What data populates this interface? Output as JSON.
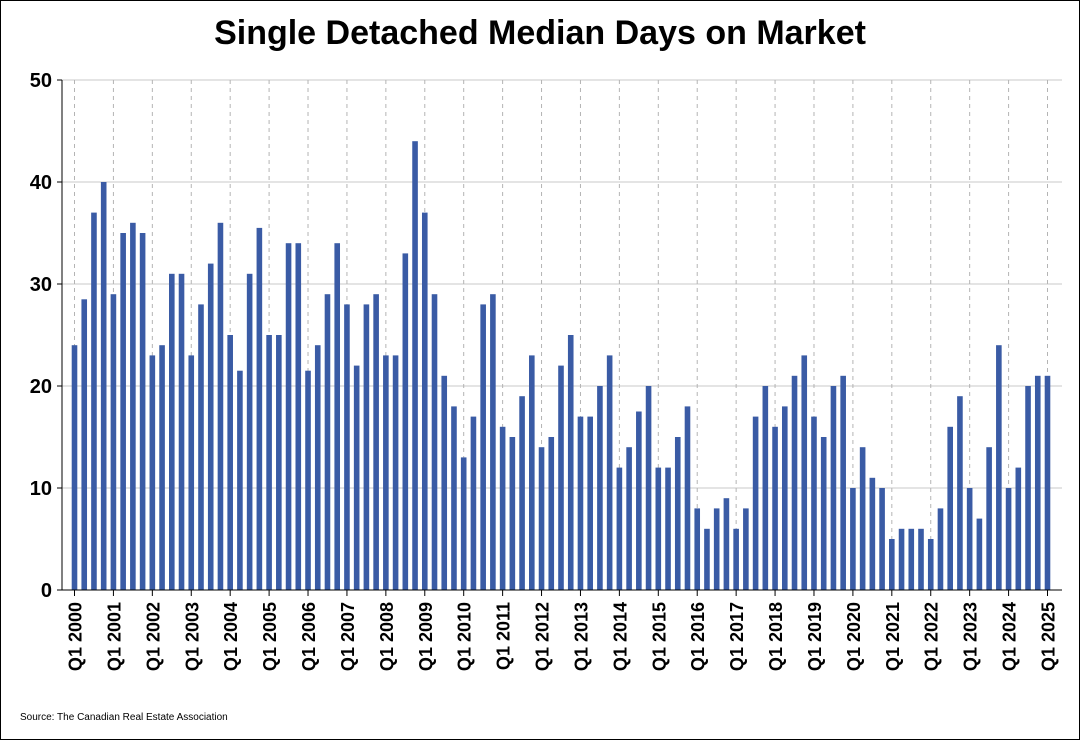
{
  "chart_data": {
    "type": "bar",
    "title": "Single Detached Median Days on Market",
    "xlabel": "",
    "ylabel": "",
    "ylim": [
      0,
      50
    ],
    "yticks": [
      0,
      10,
      20,
      30,
      40,
      50
    ],
    "grid": "horizontal solid, vertical dashed at year starts",
    "bar_color": "#3a5ba5",
    "x_tick_labels": [
      "Q1 2000",
      "Q1 2001",
      "Q1 2002",
      "Q1 2003",
      "Q1 2004",
      "Q1 2005",
      "Q1 2006",
      "Q1 2007",
      "Q1 2008",
      "Q1 2009",
      "Q1 2010",
      "Q1 2011",
      "Q1 2012",
      "Q1 2013",
      "Q1 2014",
      "Q1 2015",
      "Q1 2016",
      "Q1 2017",
      "Q1 2018",
      "Q1 2019",
      "Q1 2020",
      "Q1 2021",
      "Q1 2022",
      "Q1 2023",
      "Q1 2024",
      "Q1 2025"
    ],
    "categories": [
      "Q1 2000",
      "Q2 2000",
      "Q3 2000",
      "Q4 2000",
      "Q1 2001",
      "Q2 2001",
      "Q3 2001",
      "Q4 2001",
      "Q1 2002",
      "Q2 2002",
      "Q3 2002",
      "Q4 2002",
      "Q1 2003",
      "Q2 2003",
      "Q3 2003",
      "Q4 2003",
      "Q1 2004",
      "Q2 2004",
      "Q3 2004",
      "Q4 2004",
      "Q1 2005",
      "Q2 2005",
      "Q3 2005",
      "Q4 2005",
      "Q1 2006",
      "Q2 2006",
      "Q3 2006",
      "Q4 2006",
      "Q1 2007",
      "Q2 2007",
      "Q3 2007",
      "Q4 2007",
      "Q1 2008",
      "Q2 2008",
      "Q3 2008",
      "Q4 2008",
      "Q1 2009",
      "Q2 2009",
      "Q3 2009",
      "Q4 2009",
      "Q1 2010",
      "Q2 2010",
      "Q3 2010",
      "Q4 2010",
      "Q1 2011",
      "Q2 2011",
      "Q3 2011",
      "Q4 2011",
      "Q1 2012",
      "Q2 2012",
      "Q3 2012",
      "Q4 2012",
      "Q1 2013",
      "Q2 2013",
      "Q3 2013",
      "Q4 2013",
      "Q1 2014",
      "Q2 2014",
      "Q3 2014",
      "Q4 2014",
      "Q1 2015",
      "Q2 2015",
      "Q3 2015",
      "Q4 2015",
      "Q1 2016",
      "Q2 2016",
      "Q3 2016",
      "Q4 2016",
      "Q1 2017",
      "Q2 2017",
      "Q3 2017",
      "Q4 2017",
      "Q1 2018",
      "Q2 2018",
      "Q3 2018",
      "Q4 2018",
      "Q1 2019",
      "Q2 2019",
      "Q3 2019",
      "Q4 2019",
      "Q1 2020",
      "Q2 2020",
      "Q3 2020",
      "Q4 2020",
      "Q1 2021",
      "Q2 2021",
      "Q3 2021",
      "Q4 2021",
      "Q1 2022",
      "Q2 2022",
      "Q3 2022",
      "Q4 2022",
      "Q1 2023",
      "Q2 2023",
      "Q3 2023",
      "Q4 2023",
      "Q1 2024",
      "Q2 2024",
      "Q3 2024",
      "Q4 2024",
      "Q1 2025"
    ],
    "values": [
      24,
      28.5,
      37,
      40,
      29,
      35,
      36,
      35,
      23,
      24,
      31,
      31,
      23,
      28,
      32,
      36,
      25,
      21.5,
      31,
      35.5,
      25,
      25,
      34,
      34,
      21.5,
      24,
      29,
      34,
      28,
      22,
      28,
      29,
      23,
      23,
      33,
      44,
      37,
      29,
      21,
      18,
      13,
      17,
      28,
      29,
      16,
      15,
      19,
      23,
      14,
      15,
      22,
      25,
      17,
      17,
      20,
      23,
      12,
      14,
      17.5,
      20,
      12,
      12,
      15,
      18,
      8,
      6,
      8,
      9,
      6,
      8,
      17,
      20,
      16,
      18,
      21,
      23,
      17,
      15,
      20,
      21,
      10,
      14,
      11,
      10,
      5,
      6,
      6,
      6,
      5,
      8,
      16,
      19,
      10,
      7,
      14,
      24,
      10,
      12,
      20,
      21,
      21
    ]
  },
  "source": "Source: The Canadian Real Estate Association"
}
